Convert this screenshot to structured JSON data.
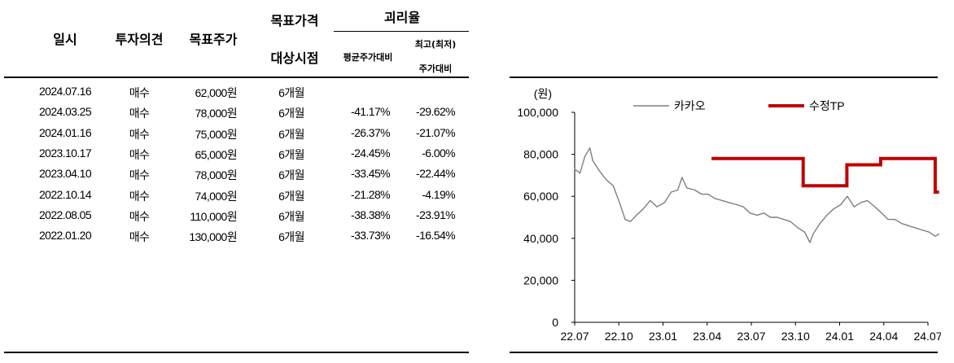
{
  "table": {
    "headers": {
      "date": "일시",
      "opinion": "투자의견",
      "target": "목표주가",
      "horizon_line1": "목표가격",
      "horizon_line2": "대상시점",
      "gap": "괴리율",
      "gap_avg": "평균주가대비",
      "gap_max_line1": "최고(최저)",
      "gap_max_line2": "주가대비"
    },
    "rows": [
      {
        "date": "2024.07.16",
        "opinion": "매수",
        "target": "62,000원",
        "horizon": "6개월",
        "avg": "",
        "max": ""
      },
      {
        "date": "2024.03.25",
        "opinion": "매수",
        "target": "78,000원",
        "horizon": "6개월",
        "avg": "-41.17%",
        "max": "-29.62%"
      },
      {
        "date": "2024.01.16",
        "opinion": "매수",
        "target": "75,000원",
        "horizon": "6개월",
        "avg": "-26.37%",
        "max": "-21.07%"
      },
      {
        "date": "2023.10.17",
        "opinion": "매수",
        "target": "65,000원",
        "horizon": "6개월",
        "avg": "-24.45%",
        "max": "-6.00%"
      },
      {
        "date": "2023.04.10",
        "opinion": "매수",
        "target": "78,000원",
        "horizon": "6개월",
        "avg": "-33.45%",
        "max": "-22.44%"
      },
      {
        "date": "2022.10.14",
        "opinion": "매수",
        "target": "74,000원",
        "horizon": "6개월",
        "avg": "-21.28%",
        "max": "-4.19%"
      },
      {
        "date": "2022.08.05",
        "opinion": "매수",
        "target": "110,000원",
        "horizon": "6개월",
        "avg": "-38.38%",
        "max": "-23.91%"
      },
      {
        "date": "2022.01.20",
        "opinion": "매수",
        "target": "130,000원",
        "horizon": "6개월",
        "avg": "-33.73%",
        "max": "-16.54%"
      }
    ]
  },
  "chart_data": {
    "type": "line",
    "ylabel": "(원)",
    "ylim": [
      0,
      100000
    ],
    "yticks": [
      "100,000",
      "80,000",
      "60,000",
      "40,000",
      "20,000",
      "0"
    ],
    "xticks": [
      "22.07",
      "22.10",
      "23.01",
      "23.04",
      "23.07",
      "23.10",
      "24.01",
      "24.04",
      "24.07"
    ],
    "legend_position": "top",
    "grid": false,
    "colors": {
      "price": "#7f7f7f",
      "tp": "#c00000"
    },
    "series": [
      {
        "name": "카카오",
        "x": [
          "22.07.01",
          "22.07.12",
          "22.07.22",
          "22.08.02",
          "22.08.08",
          "22.08.22",
          "22.09.05",
          "22.09.20",
          "22.10.04",
          "22.10.14",
          "22.10.25",
          "22.11.07",
          "22.11.21",
          "22.12.05",
          "22.12.19",
          "23.01.04",
          "23.01.18",
          "23.02.01",
          "23.02.10",
          "23.02.20",
          "23.03.06",
          "23.03.20",
          "23.04.03",
          "23.04.17",
          "23.05.02",
          "23.05.16",
          "23.06.01",
          "23.06.15",
          "23.06.29",
          "23.07.13",
          "23.07.27",
          "23.08.10",
          "23.08.24",
          "23.09.07",
          "23.09.21",
          "23.10.06",
          "23.10.20",
          "23.10.31",
          "23.11.07",
          "23.11.21",
          "23.12.05",
          "23.12.19",
          "24.01.03",
          "24.01.17",
          "24.01.31",
          "24.02.14",
          "24.02.28",
          "24.03.13",
          "24.03.27",
          "24.04.10",
          "24.04.24",
          "24.05.08",
          "24.05.22",
          "24.06.05",
          "24.06.19",
          "24.07.03",
          "24.07.16",
          "24.07.24"
        ],
        "values": [
          73000,
          71000,
          79000,
          83000,
          77000,
          72000,
          68000,
          65000,
          56000,
          49000,
          48000,
          51000,
          54000,
          58000,
          55000,
          57000,
          62000,
          63000,
          69000,
          64000,
          63000,
          61000,
          61000,
          59000,
          58000,
          57000,
          56000,
          55000,
          52000,
          51000,
          52000,
          50000,
          50000,
          49000,
          48000,
          45000,
          43000,
          38000,
          42000,
          47000,
          51000,
          54000,
          56000,
          60000,
          55000,
          57000,
          58000,
          55000,
          52000,
          49000,
          49000,
          47000,
          46000,
          45000,
          44000,
          43000,
          41000,
          42000
        ]
      },
      {
        "name": "수정TP",
        "x": [
          "23.04.10",
          "23.10.17",
          "23.10.17",
          "24.01.16",
          "24.01.16",
          "24.03.25",
          "24.03.25",
          "24.07.16",
          "24.07.16",
          "24.07.24"
        ],
        "values": [
          78000,
          78000,
          65000,
          65000,
          75000,
          75000,
          78000,
          78000,
          62000,
          62000
        ]
      }
    ]
  }
}
